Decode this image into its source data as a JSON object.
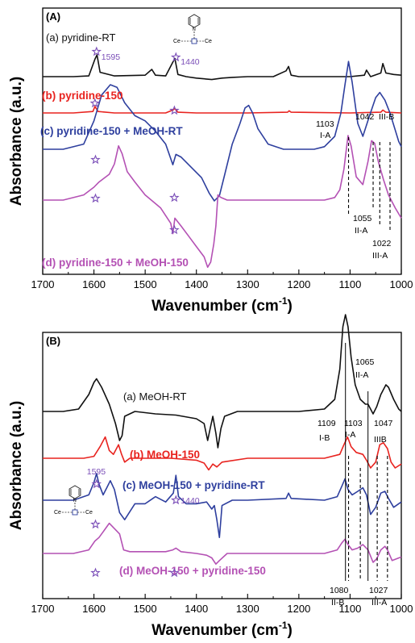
{
  "colors": {
    "black": "#111111",
    "red": "#e8231f",
    "blue": "#2e3f9e",
    "magenta": "#b451b4",
    "star": "#7b4fb8"
  },
  "chart_data": [
    {
      "panel": "(A)",
      "type": "line",
      "xlabel": "Wavenumber (cm",
      "xlabel_sup": "-1",
      "ylabel": "Absorbance (a.u.)",
      "xlim": [
        1700,
        1000
      ],
      "xticks": [
        "1700",
        "1600",
        "1500",
        "1400",
        "1300",
        "1200",
        "1100",
        "1000"
      ],
      "series": [
        {
          "name": "(a) pyridine-RT",
          "color": "#111111",
          "x": [
            1700,
            1640,
            1610,
            1598,
            1594,
            1588,
            1560,
            1500,
            1487,
            1480,
            1460,
            1446,
            1442,
            1436,
            1420,
            1400,
            1370,
            1350,
            1330,
            1300,
            1250,
            1225,
            1220,
            1215,
            1200,
            1150,
            1100,
            1072,
            1068,
            1060,
            1040,
            1036,
            1030,
            1015,
            1000
          ],
          "y": [
            0,
            0,
            0.01,
            0.24,
            0.3,
            0.06,
            0.01,
            0.02,
            0.1,
            0.02,
            0.01,
            0.2,
            0.25,
            0.03,
            0.0,
            -0.02,
            -0.04,
            -0.02,
            -0.01,
            0,
            0,
            0.08,
            0.14,
            0.02,
            0,
            0,
            0,
            0.02,
            0.09,
            0.0,
            0.05,
            0.18,
            0.05,
            0.03,
            0.02
          ]
        },
        {
          "name": "(b) pyridine-150",
          "color": "#e8231f",
          "x": [
            1700,
            1640,
            1602,
            1598,
            1592,
            1560,
            1460,
            1446,
            1442,
            1436,
            1400,
            1300,
            1222,
            1219,
            1215,
            1100,
            1040,
            1036,
            1030,
            1000
          ],
          "y": [
            0,
            0,
            0.02,
            0.09,
            0.02,
            0,
            0,
            0.04,
            0.06,
            0.01,
            0,
            0,
            0.01,
            0.03,
            0.01,
            0,
            0.01,
            0.04,
            0.01,
            0
          ]
        },
        {
          "name": "(c) pyridine-150 + MeOH-RT",
          "color": "#2e3f9e",
          "x": [
            1700,
            1660,
            1620,
            1600,
            1585,
            1568,
            1555,
            1540,
            1520,
            1500,
            1480,
            1460,
            1446,
            1440,
            1430,
            1410,
            1390,
            1375,
            1365,
            1355,
            1345,
            1330,
            1315,
            1305,
            1298,
            1290,
            1280,
            1260,
            1230,
            1200,
            1170,
            1150,
            1130,
            1118,
            1110,
            1103,
            1096,
            1085,
            1075,
            1062,
            1050,
            1042,
            1032,
            1022,
            1012,
            1005,
            1000
          ],
          "y": [
            0,
            0,
            0.04,
            0.22,
            0.42,
            0.5,
            0.48,
            0.36,
            0.26,
            0.22,
            0.14,
            0.04,
            -0.12,
            -0.04,
            -0.06,
            -0.14,
            -0.22,
            -0.34,
            -0.4,
            -0.36,
            -0.2,
            0.04,
            0.2,
            0.32,
            0.34,
            0.28,
            0.16,
            0.04,
            0,
            0,
            0,
            0.02,
            0.1,
            0.28,
            0.5,
            0.68,
            0.52,
            0.2,
            0.1,
            0.26,
            0.4,
            0.44,
            0.38,
            0.28,
            0.15,
            0.06,
            0.02
          ]
        },
        {
          "name": "(d) pyridine-150 + MeOH-150",
          "color": "#b451b4",
          "x": [
            1700,
            1660,
            1620,
            1600,
            1590,
            1570,
            1560,
            1552,
            1545,
            1535,
            1520,
            1500,
            1470,
            1450,
            1446,
            1442,
            1430,
            1415,
            1400,
            1385,
            1378,
            1372,
            1366,
            1362,
            1358,
            1352,
            1340,
            1320,
            1300,
            1250,
            1200,
            1150,
            1130,
            1120,
            1112,
            1104,
            1098,
            1088,
            1075,
            1065,
            1058,
            1052,
            1045,
            1035,
            1025,
            1012,
            1000
          ],
          "y": [
            0,
            0,
            0.04,
            0.1,
            0.14,
            0.2,
            0.28,
            0.42,
            0.36,
            0.22,
            0.14,
            0.04,
            -0.06,
            -0.18,
            -0.26,
            -0.14,
            -0.2,
            -0.28,
            -0.36,
            -0.44,
            -0.52,
            -0.48,
            -0.34,
            -0.2,
            0.04,
            0.02,
            0.0,
            0,
            0,
            0,
            0,
            0,
            0.02,
            0.08,
            0.24,
            0.5,
            0.42,
            0.18,
            0.12,
            0.3,
            0.46,
            0.44,
            0.3,
            0.16,
            0.04,
            -0.06,
            -0.14
          ]
        }
      ],
      "labels": [
        {
          "text": "(a) pyridine-RT",
          "color": "#111111"
        },
        {
          "text": "(b) pyridine-150",
          "color": "#e8231f"
        },
        {
          "text": "(c) pyridine-150 + MeOH-RT",
          "color": "#2e3f9e"
        },
        {
          "text": "(d) pyridine-150 + MeOH-150",
          "color": "#b451b4"
        }
      ],
      "annotations": [
        "1595",
        "1440",
        "1103",
        "I-A",
        "1042",
        "III-B",
        "1055",
        "II-A",
        "1022",
        "III-A"
      ],
      "inset_text": [
        "Ce",
        "Ce",
        "N"
      ]
    },
    {
      "panel": "(B)",
      "type": "line",
      "xlabel": "Wavenumber (cm",
      "xlabel_sup": "-1",
      "ylabel": "Absorbance (a.u.)",
      "xlim": [
        1700,
        1000
      ],
      "xticks": [
        "1700",
        "1600",
        "1500",
        "1400",
        "1300",
        "1200",
        "1100",
        "1000"
      ],
      "series": [
        {
          "name": "(a) MeOH-RT",
          "color": "#111111",
          "x": [
            1700,
            1660,
            1630,
            1610,
            1600,
            1595,
            1585,
            1570,
            1558,
            1550,
            1545,
            1540,
            1520,
            1480,
            1440,
            1400,
            1385,
            1378,
            1372,
            1368,
            1362,
            1358,
            1352,
            1345,
            1320,
            1250,
            1200,
            1150,
            1130,
            1120,
            1114,
            1109,
            1104,
            1098,
            1090,
            1080,
            1070,
            1065,
            1055,
            1048,
            1040,
            1030,
            1025,
            1015,
            1005,
            1000
          ],
          "y": [
            0,
            0,
            0.02,
            0.14,
            0.24,
            0.27,
            0.2,
            0.06,
            -0.1,
            -0.24,
            -0.2,
            -0.04,
            0,
            -0.02,
            -0.03,
            -0.06,
            -0.1,
            -0.24,
            -0.12,
            -0.04,
            -0.18,
            -0.3,
            -0.14,
            -0.04,
            0,
            0,
            0,
            0.02,
            0.1,
            0.35,
            0.7,
            0.8,
            0.7,
            0.45,
            0.22,
            0.1,
            0.06,
            0.06,
            -0.02,
            0.04,
            0.14,
            0.22,
            0.2,
            0.1,
            0.02,
            0
          ]
        },
        {
          "name": "(b) MeOH-150",
          "color": "#e8231f",
          "x": [
            1700,
            1620,
            1600,
            1588,
            1578,
            1570,
            1562,
            1552,
            1546,
            1540,
            1530,
            1500,
            1450,
            1400,
            1385,
            1376,
            1368,
            1360,
            1350,
            1300,
            1200,
            1150,
            1120,
            1112,
            1105,
            1098,
            1088,
            1075,
            1068,
            1060,
            1050,
            1042,
            1035,
            1027,
            1020,
            1012,
            1000
          ],
          "y": [
            0,
            0,
            0.02,
            0.12,
            0.22,
            0.08,
            0.04,
            0.14,
            0.04,
            -0.04,
            0,
            0,
            0,
            -0.02,
            -0.05,
            -0.12,
            -0.06,
            -0.09,
            -0.04,
            0,
            0,
            0,
            0.04,
            0.14,
            0.22,
            0.12,
            0.06,
            0.04,
            -0.02,
            -0.1,
            -0.04,
            0.14,
            0.16,
            0.1,
            -0.04,
            -0.1,
            -0.06
          ]
        },
        {
          "name": "(c) MeOH-150 + pyridine-RT",
          "color": "#2e3f9e",
          "x": [
            1700,
            1640,
            1610,
            1600,
            1595,
            1590,
            1582,
            1575,
            1568,
            1560,
            1550,
            1540,
            1520,
            1500,
            1485,
            1480,
            1460,
            1445,
            1440,
            1435,
            1420,
            1400,
            1380,
            1370,
            1365,
            1360,
            1355,
            1350,
            1330,
            1300,
            1225,
            1220,
            1215,
            1150,
            1125,
            1116,
            1110,
            1104,
            1096,
            1085,
            1075,
            1068,
            1060,
            1050,
            1040,
            1032,
            1025,
            1015,
            1000
          ],
          "y": [
            0,
            0,
            0.06,
            0.2,
            0.3,
            0.18,
            0.06,
            0.14,
            0.22,
            0.12,
            -0.14,
            -0.22,
            -0.04,
            -0.04,
            0.02,
            0.04,
            -0.02,
            0.08,
            0.28,
            0.04,
            -0.04,
            -0.04,
            -0.02,
            -0.1,
            -0.06,
            -0.22,
            -0.42,
            -0.06,
            0,
            0,
            0.02,
            0.08,
            0.02,
            0,
            0.04,
            0.16,
            0.24,
            0.12,
            0.06,
            0.1,
            0.14,
            0.06,
            -0.16,
            -0.08,
            0.08,
            0.1,
            0.02,
            -0.08,
            -0.02
          ]
        },
        {
          "name": "(d) MeOH-150 + pyridine-150",
          "color": "#b451b4",
          "x": [
            1700,
            1640,
            1610,
            1598,
            1590,
            1580,
            1570,
            1560,
            1550,
            1542,
            1530,
            1500,
            1460,
            1446,
            1440,
            1430,
            1400,
            1380,
            1370,
            1362,
            1355,
            1340,
            1300,
            1200,
            1150,
            1125,
            1116,
            1110,
            1104,
            1096,
            1085,
            1075,
            1065,
            1055,
            1048,
            1040,
            1032,
            1027,
            1018,
            1000
          ],
          "y": [
            0,
            0,
            0.04,
            0.14,
            0.18,
            0.26,
            0.34,
            0.28,
            0.22,
            0.04,
            0.02,
            0.02,
            0.02,
            0.04,
            0.06,
            0.02,
            0.0,
            -0.02,
            -0.05,
            -0.12,
            -0.08,
            0,
            0,
            0,
            0,
            0.04,
            0.12,
            0.16,
            0.1,
            0.04,
            0.06,
            0.1,
            0.04,
            -0.1,
            -0.06,
            0.04,
            0.08,
            0.04,
            -0.08,
            -0.04
          ]
        }
      ],
      "labels": [
        {
          "text": "(a) MeOH-RT",
          "color": "#111111"
        },
        {
          "text": "(b) MeOH-150",
          "color": "#e8231f"
        },
        {
          "text": "(c) MeOH-150 + pyridine-RT",
          "color": "#2e3f9e"
        },
        {
          "text": "(d) MeOH-150 + pyridine-150",
          "color": "#b451b4"
        }
      ],
      "annotations": [
        "1595",
        "1440",
        "1065",
        "II-A",
        "1109",
        "I-B",
        "1103",
        "I-A",
        "1047",
        "IIIB",
        "1080",
        "II-B",
        "1027",
        "III-A"
      ],
      "inset_text": [
        "Ce",
        "Ce",
        "N"
      ]
    }
  ]
}
